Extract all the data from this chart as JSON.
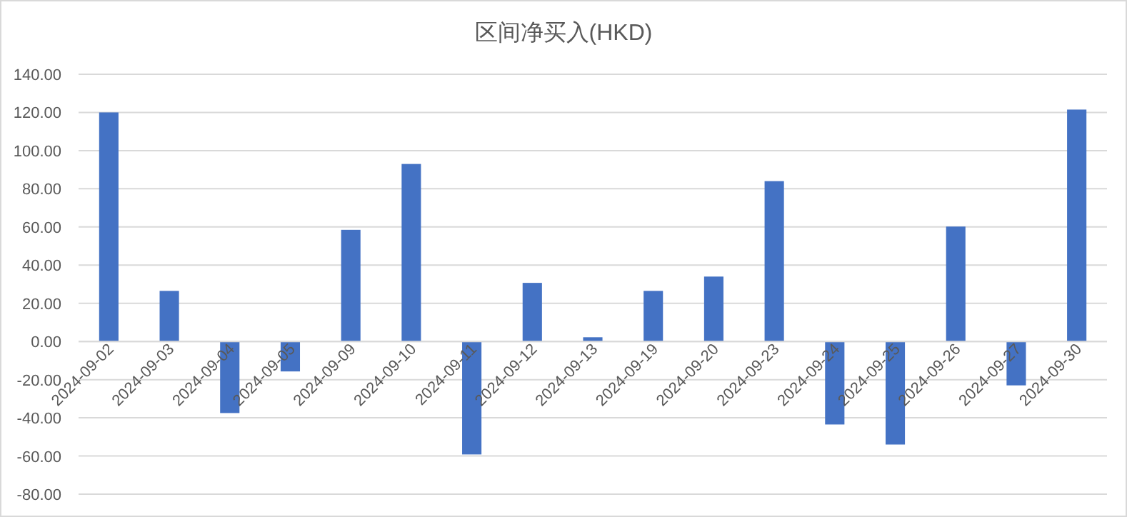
{
  "chart_data": {
    "type": "bar",
    "title": "区间净买入(HKD)",
    "categories": [
      "2024-09-02",
      "2024-09-03",
      "2024-09-04",
      "2024-09-05",
      "2024-09-09",
      "2024-09-10",
      "2024-09-11",
      "2024-09-12",
      "2024-09-13",
      "2024-09-19",
      "2024-09-20",
      "2024-09-23",
      "2024-09-24",
      "2024-09-25",
      "2024-09-26",
      "2024-09-27",
      "2024-09-30"
    ],
    "values": [
      120,
      26.5,
      -37.5,
      -15.7,
      58.5,
      93,
      -59.2,
      30.7,
      2.2,
      26.5,
      34,
      84,
      -43.5,
      -54,
      60.2,
      -23,
      121.5
    ],
    "color": "#4472c4",
    "ylim": [
      -80,
      140
    ],
    "yticks": [
      {
        "value": -80,
        "label": "-80.00"
      },
      {
        "value": -60,
        "label": "-60.00"
      },
      {
        "value": -40,
        "label": "-40.00"
      },
      {
        "value": -20,
        "label": "-20.00"
      },
      {
        "value": 0,
        "label": "0.00"
      },
      {
        "value": 20,
        "label": "20.00"
      },
      {
        "value": 40,
        "label": "40.00"
      },
      {
        "value": 60,
        "label": "60.00"
      },
      {
        "value": 80,
        "label": "80.00"
      },
      {
        "value": 100,
        "label": "100.00"
      },
      {
        "value": 120,
        "label": "120.00"
      },
      {
        "value": 140,
        "label": "140.00"
      }
    ],
    "grid": "y"
  }
}
